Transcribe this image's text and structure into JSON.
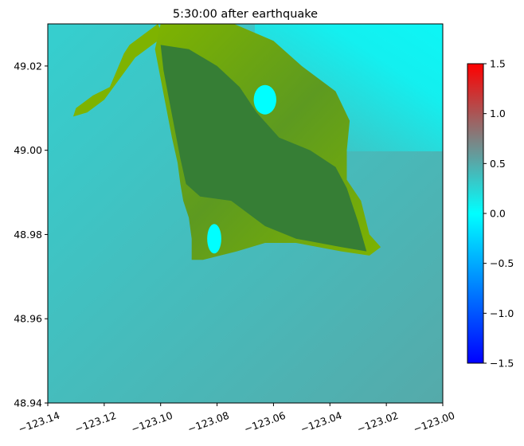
{
  "chart_data": {
    "type": "heatmap",
    "title": "5:30:00 after earthquake",
    "xlabel": "",
    "ylabel": "",
    "xlim": [
      -123.14,
      -123.0
    ],
    "ylim": [
      48.94,
      49.03
    ],
    "x_ticks": [
      -123.14,
      -123.12,
      -123.1,
      -123.08,
      -123.06,
      -123.04,
      -123.02,
      -123.0
    ],
    "x_tick_labels": [
      "−123.14",
      "−123.12",
      "−123.10",
      "−123.08",
      "−123.06",
      "−123.04",
      "−123.02",
      "−123.00"
    ],
    "y_ticks": [
      48.94,
      48.96,
      48.98,
      49.0,
      49.02
    ],
    "y_tick_labels": [
      "48.94",
      "48.96",
      "48.98",
      "49.00",
      "49.02"
    ],
    "colorbar": {
      "range": [
        -1.5,
        1.5
      ],
      "ticks": [
        -1.5,
        -1.0,
        -0.5,
        0.0,
        0.5,
        1.0,
        1.5
      ],
      "tick_labels": [
        "−1.5",
        "−1.0",
        "−0.5",
        "0.0",
        "0.5",
        "1.0",
        "1.5"
      ],
      "colors": [
        "#0000ff",
        "#00ffff",
        "#808080",
        "#ff0000"
      ]
    },
    "land_colors": {
      "high": "#367e35",
      "mid": "#5d9a20",
      "low": "#7eb300"
    },
    "sea_colors": {
      "nw": "#35cfcf",
      "se": "#55aaaa",
      "ne": "#0ef5f5",
      "inner": "#00ffff"
    },
    "land_outline": [
      [
        -123.1,
        49.03
      ],
      [
        -123.074,
        49.03
      ],
      [
        -123.06,
        49.026
      ],
      [
        -123.05,
        49.02
      ],
      [
        -123.038,
        49.014
      ],
      [
        -123.033,
        49.007
      ],
      [
        -123.034,
        49.0
      ],
      [
        -123.034,
        48.993
      ],
      [
        -123.029,
        48.988
      ],
      [
        -123.026,
        48.98
      ],
      [
        -123.022,
        48.977
      ],
      [
        -123.026,
        48.975
      ],
      [
        -123.036,
        48.976
      ],
      [
        -123.052,
        48.978
      ],
      [
        -123.063,
        48.978
      ],
      [
        -123.073,
        48.976
      ],
      [
        -123.085,
        48.974
      ],
      [
        -123.089,
        48.974
      ],
      [
        -123.089,
        48.979
      ],
      [
        -123.09,
        48.984
      ],
      [
        -123.092,
        48.988
      ],
      [
        -123.093,
        48.992
      ],
      [
        -123.094,
        48.997
      ],
      [
        -123.096,
        49.003
      ],
      [
        -123.098,
        49.01
      ],
      [
        -123.1,
        49.017
      ],
      [
        -123.102,
        49.024
      ]
    ],
    "high_outline": [
      [
        -123.1,
        49.025
      ],
      [
        -123.09,
        49.024
      ],
      [
        -123.08,
        49.02
      ],
      [
        -123.072,
        49.015
      ],
      [
        -123.066,
        49.009
      ],
      [
        -123.058,
        49.003
      ],
      [
        -123.047,
        49.0
      ],
      [
        -123.038,
        48.996
      ],
      [
        -123.034,
        48.991
      ],
      [
        -123.03,
        48.983
      ],
      [
        -123.027,
        48.976
      ],
      [
        -123.036,
        48.977
      ],
      [
        -123.052,
        48.979
      ],
      [
        -123.063,
        48.982
      ],
      [
        -123.075,
        48.988
      ],
      [
        -123.086,
        48.989
      ],
      [
        -123.091,
        48.992
      ],
      [
        -123.093,
        48.998
      ],
      [
        -123.095,
        49.005
      ],
      [
        -123.097,
        49.012
      ],
      [
        -123.099,
        49.019
      ]
    ],
    "spit_outline": [
      [
        -123.113,
        49.023
      ],
      [
        -123.111,
        49.025
      ],
      [
        -123.101,
        49.03
      ],
      [
        -123.099,
        49.027
      ],
      [
        -123.109,
        49.022
      ],
      [
        -123.12,
        49.012
      ],
      [
        -123.126,
        49.009
      ],
      [
        -123.131,
        49.008
      ],
      [
        -123.13,
        49.01
      ],
      [
        -123.124,
        49.013
      ],
      [
        -123.118,
        49.015
      ]
    ],
    "inner_pools": [
      {
        "cx": -123.063,
        "cy": 49.012,
        "rx": 0.004,
        "ry": 0.0035
      },
      {
        "cx": -123.081,
        "cy": 48.979,
        "rx": 0.0025,
        "ry": 0.0035
      }
    ]
  }
}
